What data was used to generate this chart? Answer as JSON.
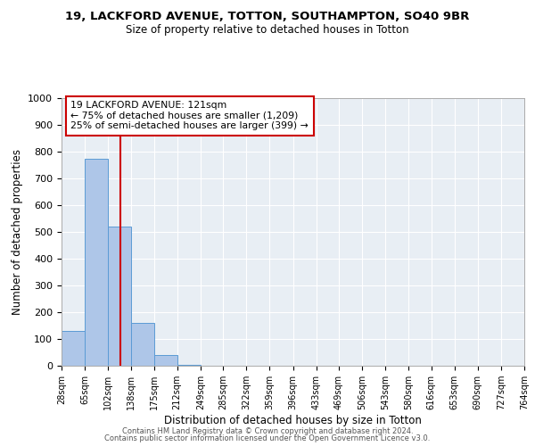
{
  "title": "19, LACKFORD AVENUE, TOTTON, SOUTHAMPTON, SO40 9BR",
  "subtitle": "Size of property relative to detached houses in Totton",
  "xlabel": "Distribution of detached houses by size in Totton",
  "ylabel": "Number of detached properties",
  "footer_line1": "Contains HM Land Registry data © Crown copyright and database right 2024.",
  "footer_line2": "Contains public sector information licensed under the Open Government Licence v3.0.",
  "bin_edges": [
    28,
    65,
    102,
    138,
    175,
    212,
    249,
    285,
    322,
    359,
    396,
    433,
    469,
    506,
    543,
    580,
    616,
    653,
    690,
    727,
    764
  ],
  "bar_heights": [
    130,
    775,
    520,
    160,
    40,
    5,
    0,
    0,
    0,
    0,
    0,
    0,
    0,
    0,
    0,
    0,
    0,
    0,
    0,
    0
  ],
  "bar_color": "#aec6e8",
  "bar_edge_color": "#5b9bd5",
  "vline_x": 121,
  "vline_color": "#cc0000",
  "ylim": [
    0,
    1000
  ],
  "annotation_text_line1": "19 LACKFORD AVENUE: 121sqm",
  "annotation_text_line2": "← 75% of detached houses are smaller (1,209)",
  "annotation_text_line3": "25% of semi-detached houses are larger (399) →",
  "annotation_box_color": "#cc0000",
  "tick_labels": [
    "28sqm",
    "65sqm",
    "102sqm",
    "138sqm",
    "175sqm",
    "212sqm",
    "249sqm",
    "285sqm",
    "322sqm",
    "359sqm",
    "396sqm",
    "433sqm",
    "469sqm",
    "506sqm",
    "543sqm",
    "580sqm",
    "616sqm",
    "653sqm",
    "690sqm",
    "727sqm",
    "764sqm"
  ],
  "bg_color": "#e8eef4"
}
